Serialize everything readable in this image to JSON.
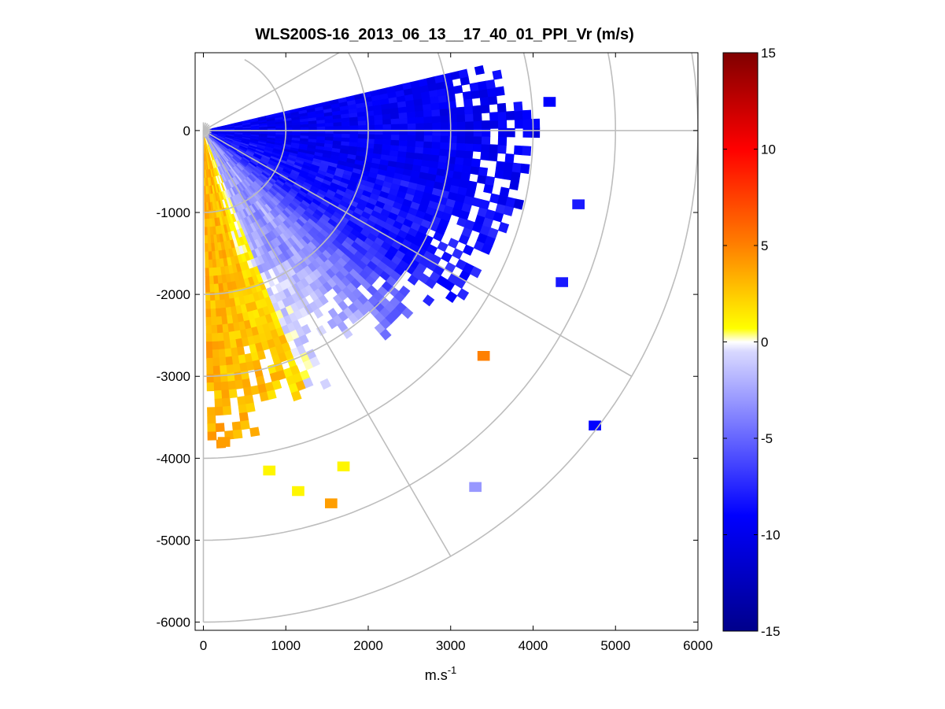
{
  "chart_data": {
    "type": "heatmap",
    "subtype": "polar-ppi-scan",
    "title": "WLS200S-16_2013_06_13__17_40_01_PPI_Vr (m/s)",
    "xlabel": "m.s",
    "xlabel_superscript": "-1",
    "ylabel": "",
    "xlim": [
      -100,
      6000
    ],
    "ylim": [
      -6100,
      950
    ],
    "xticks": [
      0,
      1000,
      2000,
      3000,
      4000,
      5000,
      6000
    ],
    "yticks": [
      0,
      -1000,
      -2000,
      -3000,
      -4000,
      -5000,
      -6000
    ],
    "grid": "polar",
    "range_rings_m": [
      1000,
      2000,
      3000,
      4000,
      5000,
      6000
    ],
    "spokes_deg": [
      30,
      0,
      -30,
      -60
    ],
    "sector_deg": [
      -90,
      15
    ],
    "colorbar": {
      "min": -15,
      "max": 15,
      "ticks": [
        15,
        10,
        5,
        0,
        -5,
        -10,
        -15
      ],
      "colors": {
        "dark_blue": "#00008b",
        "blue": "#0000ff",
        "light_blue": "#d8d8ff",
        "white": "#ffffff",
        "yellow": "#ffff00",
        "orange": "#ff8000",
        "red": "#ff0000",
        "dark_red": "#800000"
      }
    },
    "velocity_field": {
      "description_values": [
        {
          "azimuth_deg": 10,
          "range_m": 2000,
          "vr": -9
        },
        {
          "azimuth_deg": -20,
          "range_m": 3000,
          "vr": -8
        },
        {
          "azimuth_deg": -45,
          "range_m": 2500,
          "vr": -3
        },
        {
          "azimuth_deg": -75,
          "range_m": 2000,
          "vr": 2
        }
      ]
    },
    "isolated_cells": [
      {
        "x": 3400,
        "y": -2750,
        "vr": 5
      },
      {
        "x": 4750,
        "y": -3600,
        "vr": -9
      },
      {
        "x": 3300,
        "y": -4350,
        "vr": -3
      },
      {
        "x": 4200,
        "y": 350,
        "vr": -9
      },
      {
        "x": 4550,
        "y": -900,
        "vr": -8
      },
      {
        "x": 4350,
        "y": -1850,
        "vr": -8
      },
      {
        "x": 1550,
        "y": -4550,
        "vr": 4
      },
      {
        "x": 1700,
        "y": -4100,
        "vr": 1
      },
      {
        "x": 1150,
        "y": -4400,
        "vr": 1
      },
      {
        "x": 800,
        "y": -4150,
        "vr": 1
      },
      {
        "x": 250,
        "y": -3800,
        "vr": 4
      }
    ]
  }
}
